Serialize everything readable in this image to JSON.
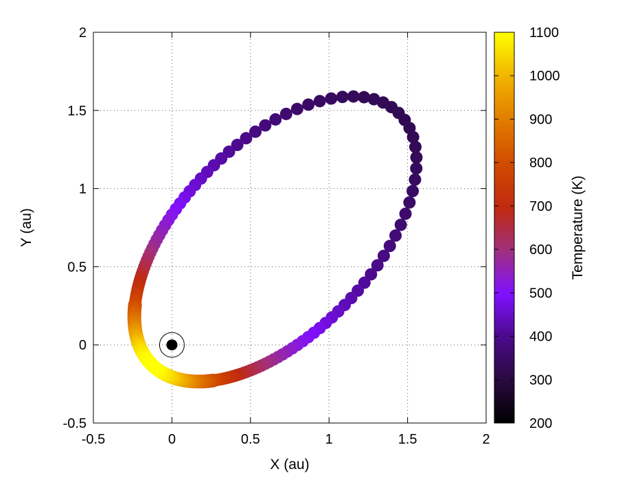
{
  "chart_data": {
    "type": "scatter",
    "title": "",
    "xlabel": "X (au)",
    "ylabel": "Y (au)",
    "xlim": [
      -0.5,
      2
    ],
    "ylim": [
      -0.5,
      2
    ],
    "xticks": [
      "-0.5",
      "0",
      "0.5",
      "1",
      "1.5",
      "2"
    ],
    "yticks": [
      "-0.5",
      "0",
      "0.5",
      "1",
      "1.5",
      "2"
    ],
    "grid": true,
    "grid_style": "dotted",
    "colorbar": {
      "label": "Temperature (K)",
      "range": [
        200,
        1100
      ],
      "ticks": [
        "200",
        "300",
        "400",
        "500",
        "600",
        "700",
        "800",
        "900",
        "1000",
        "1100"
      ],
      "colormap": "black-purple-red-orange-yellow"
    },
    "central_body": {
      "x": 0,
      "y": 0,
      "marker": "circled-dot"
    },
    "orbit": {
      "description_points_x_y_temperature": [
        {
          "x": -0.02,
          "y": -0.16,
          "t": 1080
        },
        {
          "x": 0.05,
          "y": -0.18,
          "t": 980
        },
        {
          "x": 0.15,
          "y": -0.18,
          "t": 880
        },
        {
          "x": 0.3,
          "y": -0.14,
          "t": 700
        },
        {
          "x": 0.5,
          "y": -0.06,
          "t": 540
        },
        {
          "x": 1.0,
          "y": 0.3,
          "t": 430
        },
        {
          "x": 1.5,
          "y": 1.0,
          "t": 340
        },
        {
          "x": 1.6,
          "y": 1.6,
          "t": 300
        },
        {
          "x": 1.3,
          "y": 1.85,
          "t": 305
        },
        {
          "x": 0.8,
          "y": 1.6,
          "t": 350
        },
        {
          "x": 0.3,
          "y": 1.1,
          "t": 420
        },
        {
          "x": -0.05,
          "y": 0.55,
          "t": 540
        },
        {
          "x": -0.17,
          "y": 0.25,
          "t": 700
        },
        {
          "x": -0.17,
          "y": 0.05,
          "t": 880
        },
        {
          "x": -0.1,
          "y": -0.1,
          "t": 1050
        }
      ],
      "focus": [
        0,
        0
      ],
      "semi_major_axis_au": 1.125,
      "eccentricity": 0.84,
      "perihelion_angle_deg": 225.8
    }
  }
}
